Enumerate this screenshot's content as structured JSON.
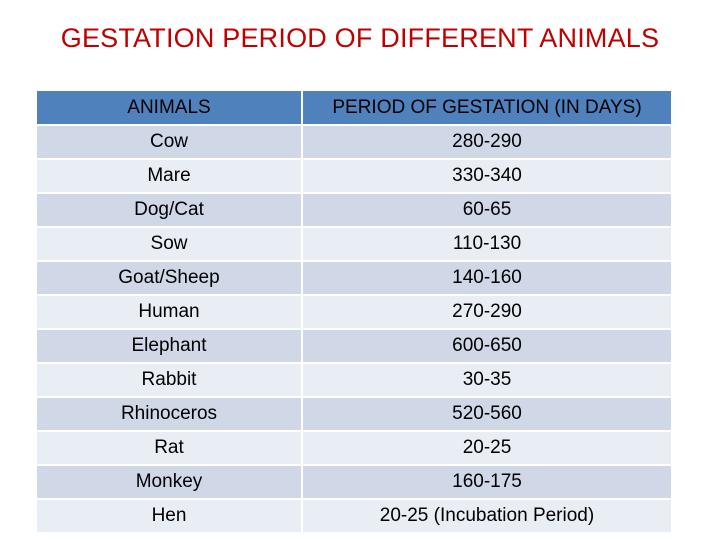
{
  "title": "GESTATION PERIOD OF DIFFERENT ANIMALS",
  "table": {
    "headers": [
      "ANIMALS",
      "PERIOD OF GESTATION (IN DAYS)"
    ],
    "rows": [
      [
        "Cow",
        "280-290"
      ],
      [
        "Mare",
        "330-340"
      ],
      [
        "Dog/Cat",
        "60-65"
      ],
      [
        "Sow",
        "110-130"
      ],
      [
        "Goat/Sheep",
        "140-160"
      ],
      [
        "Human",
        "270-290"
      ],
      [
        "Elephant",
        "600-650"
      ],
      [
        "Rabbit",
        "30-35"
      ],
      [
        "Rhinoceros",
        "520-560"
      ],
      [
        "Rat",
        "20-25"
      ],
      [
        "Monkey",
        "160-175"
      ],
      [
        "Hen",
        "20-25 (Incubation Period)"
      ]
    ]
  },
  "colors": {
    "title": "#c00000",
    "header_bg": "#4f81bd",
    "row_odd_bg": "#d0d8e8",
    "row_even_bg": "#e9edf4"
  }
}
